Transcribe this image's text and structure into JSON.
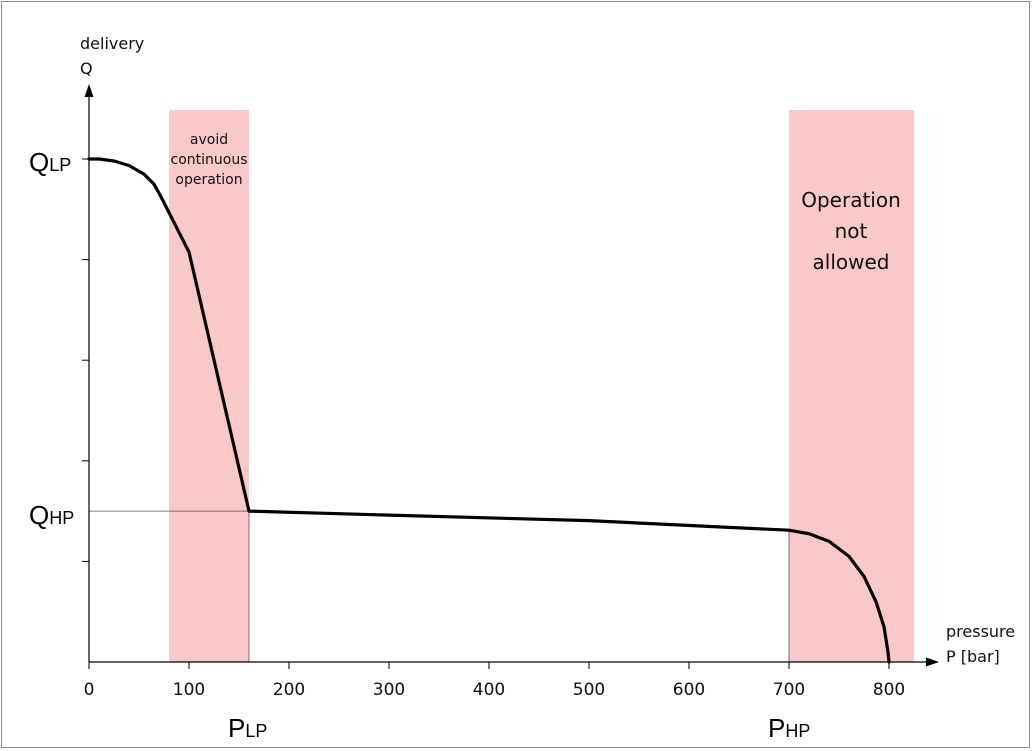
{
  "chart_data": {
    "type": "line",
    "title": "",
    "xlabel": "pressure",
    "xlabel_unit": "P [bar]",
    "ylabel": "delivery",
    "ylabel_symbol": "Q",
    "xlim": [
      0,
      800
    ],
    "x_ticks": [
      0,
      100,
      200,
      300,
      400,
      500,
      600,
      700,
      800
    ],
    "y_tick_count": 5,
    "y_markers": {
      "q_lp": {
        "main": "Q",
        "sub": "LP"
      },
      "q_hp": {
        "main": "Q",
        "sub": "HP"
      }
    },
    "x_markers": {
      "p_lp": {
        "main": "P",
        "sub": "LP",
        "x": 160
      },
      "p_hp": {
        "main": "P",
        "sub": "HP",
        "x": 700
      }
    },
    "regions": [
      {
        "name": "avoid-continuous-zone",
        "x_start": 80,
        "x_end": 160,
        "color": "#f9c8c8",
        "label_lines": [
          "avoid",
          "continuous",
          "operation"
        ]
      },
      {
        "name": "not-allowed-zone",
        "x_start": 700,
        "x_end": 825,
        "color": "#f9c8c8",
        "label_lines": [
          "Operation",
          "not",
          "allowed"
        ]
      }
    ],
    "series": [
      {
        "line_color": "#000000",
        "points": [
          [
            0,
            1.0
          ],
          [
            10,
            1.0
          ],
          [
            25,
            0.996
          ],
          [
            40,
            0.987
          ],
          [
            55,
            0.97
          ],
          [
            65,
            0.95
          ],
          [
            72,
            0.925
          ],
          [
            100,
            0.815
          ],
          [
            160,
            0.3
          ],
          [
            300,
            0.292
          ],
          [
            500,
            0.281
          ],
          [
            700,
            0.262
          ],
          [
            720,
            0.255
          ],
          [
            740,
            0.24
          ],
          [
            760,
            0.21
          ],
          [
            775,
            0.17
          ],
          [
            787,
            0.12
          ],
          [
            795,
            0.07
          ],
          [
            799,
            0.02
          ],
          [
            800,
            0.0
          ]
        ]
      }
    ]
  }
}
